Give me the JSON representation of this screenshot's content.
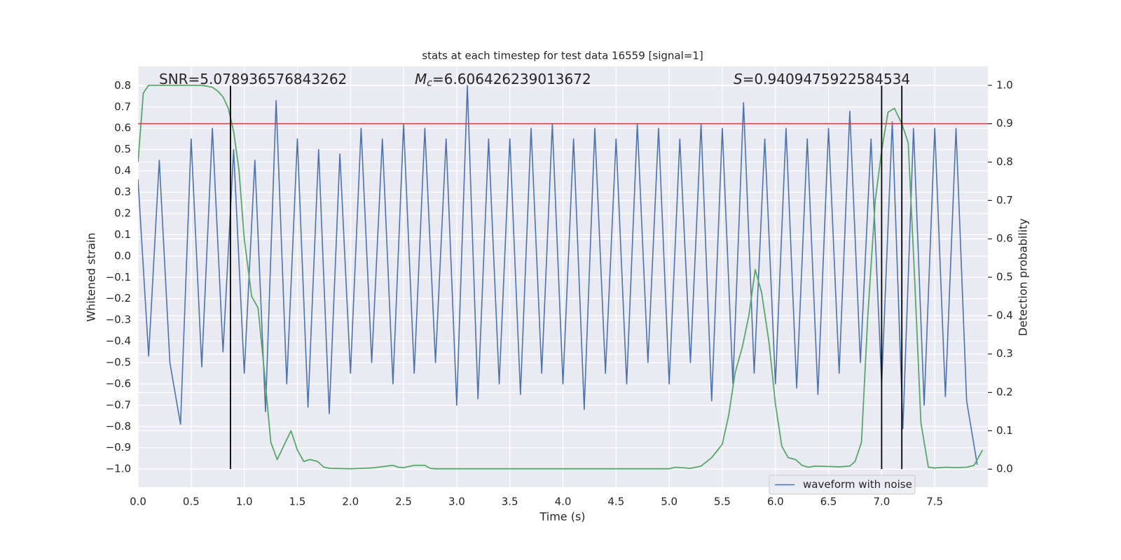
{
  "chart_data": {
    "type": "line",
    "title": "stats at each timestep for test data 16559 [signal=1]",
    "xlabel": "Time (s)",
    "ylabel": "Whitened strain",
    "y2label": "Detection probability",
    "xlim": [
      0,
      8.0
    ],
    "ylim": [
      -1.085,
      0.89
    ],
    "y2lim": [
      -0.047,
      1.049
    ],
    "xticks": [
      {
        "value": 0,
        "label": "0.0"
      },
      0.5,
      {
        "value": 1,
        "label": "1.0"
      },
      1.5,
      {
        "value": 2,
        "label": "2.0"
      },
      2.5,
      {
        "value": 3,
        "label": "3.0"
      },
      3.5,
      {
        "value": 4,
        "label": "4.0"
      },
      4.5,
      {
        "value": 5,
        "label": "5.0"
      },
      5.5,
      {
        "value": 6,
        "label": "6.0"
      },
      6.5,
      {
        "value": 7,
        "label": "7.0"
      },
      7.5
    ],
    "yticks": [
      {
        "value": -1.0,
        "label": "−1.0"
      },
      {
        "value": -0.9,
        "label": "−0.9"
      },
      {
        "value": -0.8,
        "label": "−0.8"
      },
      {
        "value": -0.7,
        "label": "−0.7"
      },
      {
        "value": -0.6,
        "label": "−0.6"
      },
      {
        "value": -0.5,
        "label": "−0.5"
      },
      {
        "value": -0.4,
        "label": "−0.4"
      },
      {
        "value": -0.3,
        "label": "−0.3"
      },
      {
        "value": -0.2,
        "label": "−0.2"
      },
      {
        "value": -0.1,
        "label": "−0.1"
      },
      {
        "value": 0,
        "label": "0.0"
      },
      0.1,
      0.2,
      0.3,
      0.4,
      0.5,
      0.6,
      0.7,
      0.8
    ],
    "y2ticks": [
      {
        "value": 0,
        "label": "0.0"
      },
      0.1,
      0.2,
      0.3,
      0.4,
      0.5,
      0.6,
      0.7,
      0.8,
      0.9,
      {
        "value": 1,
        "label": "1.0"
      }
    ],
    "grid": true,
    "legend": "lower right",
    "series": [
      {
        "name": "waveform with noise",
        "color": "#4c72b0",
        "x": [
          0,
          0.1,
          0.2,
          0.3,
          0.4,
          0.5,
          0.6,
          0.7,
          0.8,
          0.9,
          1.0,
          1.1,
          1.2,
          1.3,
          1.4,
          1.5,
          1.6,
          1.7,
          1.8,
          1.9,
          2.0,
          2.1,
          2.2,
          2.3,
          2.4,
          2.5,
          2.6,
          2.7,
          2.8,
          2.9,
          3.0,
          3.1,
          3.2,
          3.3,
          3.4,
          3.5,
          3.6,
          3.7,
          3.8,
          3.9,
          4.0,
          4.1,
          4.2,
          4.3,
          4.4,
          4.5,
          4.6,
          4.7,
          4.8,
          4.9,
          5.0,
          5.1,
          5.2,
          5.3,
          5.4,
          5.5,
          5.6,
          5.7,
          5.8,
          5.9,
          6.0,
          6.1,
          6.2,
          6.3,
          6.4,
          6.5,
          6.6,
          6.7,
          6.8,
          6.9,
          7.0,
          7.1,
          7.2,
          7.3,
          7.4,
          7.5,
          7.6,
          7.7,
          7.8,
          7.9
        ],
        "values": [
          0.36,
          -0.47,
          0.45,
          -0.5,
          -0.79,
          0.55,
          -0.52,
          0.6,
          -0.45,
          0.5,
          -0.55,
          0.45,
          -0.73,
          0.73,
          -0.6,
          0.55,
          -0.71,
          0.5,
          -0.74,
          0.48,
          -0.55,
          0.6,
          -0.5,
          0.55,
          -0.6,
          0.62,
          -0.55,
          0.6,
          -0.5,
          0.55,
          -0.7,
          0.8,
          -0.67,
          0.55,
          -0.6,
          0.55,
          -0.65,
          0.6,
          -0.55,
          0.62,
          -0.6,
          0.55,
          -0.72,
          0.6,
          -0.55,
          0.55,
          -0.6,
          0.62,
          -0.5,
          0.6,
          -0.6,
          0.55,
          -0.5,
          0.62,
          -0.68,
          0.6,
          -0.6,
          0.72,
          -0.55,
          0.55,
          -0.6,
          0.6,
          -0.62,
          0.55,
          -0.65,
          0.6,
          -0.55,
          0.68,
          -0.5,
          0.55,
          -0.6,
          0.63,
          -0.81,
          0.6,
          -0.7,
          0.6,
          -0.66,
          0.6,
          -0.68,
          -0.98
        ]
      },
      {
        "color": "#55a868",
        "axis": "y2",
        "x": [
          0,
          0.05,
          0.1,
          0.2,
          0.3,
          0.4,
          0.5,
          0.6,
          0.7,
          0.75,
          0.8,
          0.85,
          0.9,
          0.95,
          1.0,
          1.07,
          1.13,
          1.18,
          1.25,
          1.31,
          1.37,
          1.44,
          1.5,
          1.56,
          1.62,
          1.69,
          1.75,
          1.81,
          2.0,
          2.2,
          2.4,
          2.45,
          2.5,
          2.6,
          2.7,
          2.75,
          2.8,
          3.5,
          4.5,
          5.0,
          5.06,
          5.2,
          5.3,
          5.4,
          5.5,
          5.56,
          5.62,
          5.69,
          5.75,
          5.81,
          5.87,
          5.94,
          6.0,
          6.06,
          6.12,
          6.19,
          6.25,
          6.31,
          6.37,
          6.5,
          6.6,
          6.7,
          6.75,
          6.81,
          6.87,
          6.94,
          7.0,
          7.06,
          7.12,
          7.19,
          7.25,
          7.31,
          7.37,
          7.44,
          7.5,
          7.6,
          7.7,
          7.8,
          7.87,
          7.95
        ],
        "values": [
          0.8,
          0.98,
          1.0,
          1.0,
          1.0,
          1.0,
          1.0,
          1.0,
          0.995,
          0.985,
          0.97,
          0.94,
          0.88,
          0.78,
          0.6,
          0.45,
          0.42,
          0.28,
          0.07,
          0.025,
          0.06,
          0.1,
          0.05,
          0.02,
          0.025,
          0.02,
          0.005,
          0.002,
          0.001,
          0.003,
          0.01,
          0.005,
          0.004,
          0.01,
          0.01,
          0.002,
          0.001,
          0.001,
          0.001,
          0.001,
          0.005,
          0.002,
          0.008,
          0.03,
          0.065,
          0.14,
          0.25,
          0.32,
          0.4,
          0.52,
          0.46,
          0.33,
          0.17,
          0.06,
          0.03,
          0.025,
          0.01,
          0.005,
          0.008,
          0.007,
          0.006,
          0.008,
          0.02,
          0.07,
          0.4,
          0.7,
          0.83,
          0.93,
          0.94,
          0.9,
          0.85,
          0.5,
          0.12,
          0.005,
          0.003,
          0.005,
          0.004,
          0.005,
          0.01,
          0.05
        ]
      }
    ],
    "hline": {
      "value": 0.9,
      "axis": "y2",
      "color": "#c44e52"
    },
    "vlines": [
      0.87,
      7.0,
      7.19
    ],
    "vline_span": [
      -1.0,
      0.8
    ],
    "vline_color": "#000000",
    "annotations": [
      {
        "text": "SNR=5.078936576843262"
      },
      {
        "symbol": "M",
        "subscript": "c",
        "text": "=6.606426239013672"
      },
      {
        "symbol": "S",
        "text": "=0.9409475922584534"
      }
    ]
  }
}
